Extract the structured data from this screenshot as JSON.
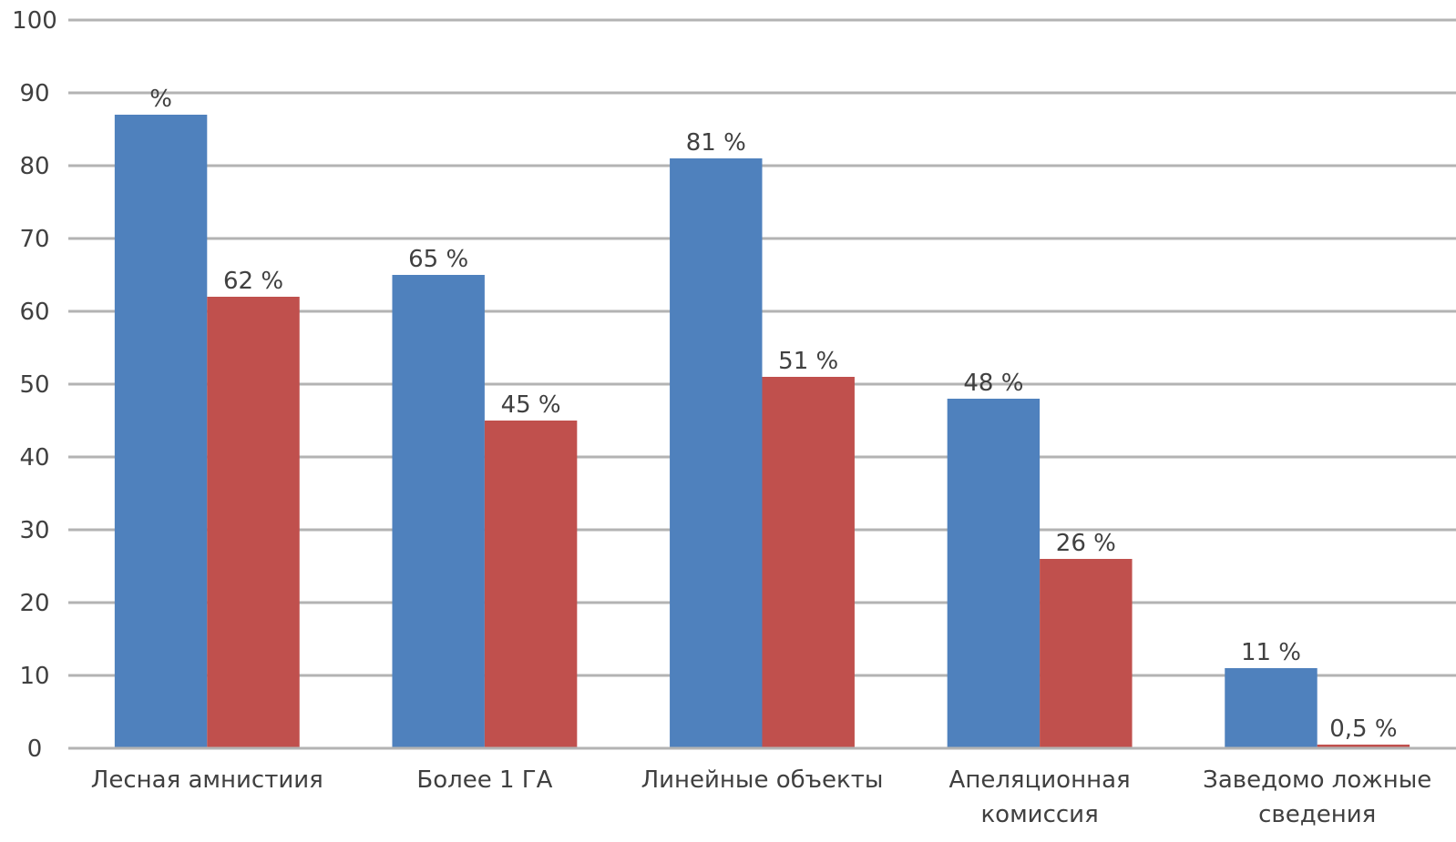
{
  "chart_data": {
    "type": "bar",
    "categories": [
      [
        "Лесная амнистиия"
      ],
      [
        "Более 1 ГА"
      ],
      [
        "Линейные объекты"
      ],
      [
        "Апеляционная",
        "комиссия"
      ],
      [
        "Заведомо ложные",
        "сведения"
      ]
    ],
    "series": [
      {
        "values": [
          87,
          65,
          81,
          48,
          11
        ],
        "labels": [
          "%",
          "65 %",
          "81 %",
          "48 %",
          "11 %"
        ],
        "color": "#4f81bd"
      },
      {
        "values": [
          62,
          45,
          51,
          26,
          0.5
        ],
        "labels": [
          "62 %",
          "45 %",
          "51 %",
          "26 %",
          "0,5 %"
        ],
        "color": "#c0504d"
      }
    ],
    "yticks": [
      "0",
      "10",
      "20",
      "30",
      "40",
      "50",
      "60",
      "70",
      "80",
      "90",
      "100"
    ],
    "ylim": [
      0,
      100
    ],
    "grid": true,
    "legend": "none"
  }
}
